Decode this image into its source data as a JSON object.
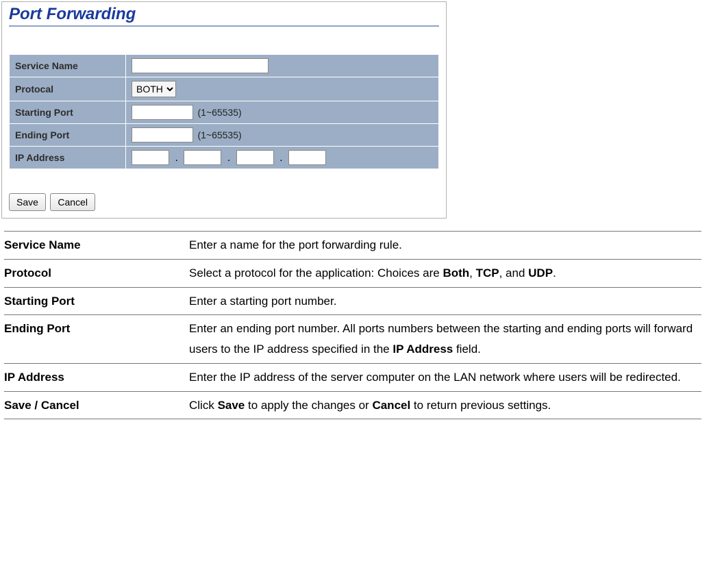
{
  "panel": {
    "title": "Port Forwarding",
    "title_color": "#1a3a9c",
    "title_fontsize": 24,
    "hr_color": "#8da5c5",
    "row_bg": "#9baec5",
    "fields": {
      "service_name": {
        "label": "Service Name",
        "value": ""
      },
      "protocal": {
        "label": "Protocal",
        "selected": "BOTH",
        "options": [
          "BOTH",
          "TCP",
          "UDP"
        ]
      },
      "starting_port": {
        "label": "Starting Port",
        "value": "",
        "hint": "(1~65535)"
      },
      "ending_port": {
        "label": "Ending Port",
        "value": "",
        "hint": "(1~65535)"
      },
      "ip_address": {
        "label": "IP Address",
        "oct1": "",
        "oct2": "",
        "oct3": "",
        "oct4": ""
      }
    },
    "buttons": {
      "save": "Save",
      "cancel": "Cancel"
    }
  },
  "descriptions": [
    {
      "term": "Service Name",
      "text": "Enter a name for the port forwarding rule."
    },
    {
      "term": "Protocol",
      "text_html": "Select a protocol for the application: Choices are <b>Both</b>, <b>TCP</b>, and <b>UDP</b>."
    },
    {
      "term": "Starting Port",
      "text": "Enter a starting port number."
    },
    {
      "term": "Ending Port",
      "text_html": "Enter an ending port number. All ports numbers between the starting and ending ports will forward users to the IP address specified in the <b>IP Address</b> field."
    },
    {
      "term": "IP Address",
      "text": "Enter the IP address of the server computer on the LAN network where users will be redirected."
    },
    {
      "term": "Save / Cancel",
      "text_html": "Click <b>Save</b> to apply the changes or <b>Cancel</b> to return previous settings."
    }
  ],
  "styles": {
    "body_width": 1035,
    "screenshot_width": 650,
    "desc_fontsize": 17,
    "desc_line_height": 1.75,
    "desc_border_color": "#777"
  }
}
